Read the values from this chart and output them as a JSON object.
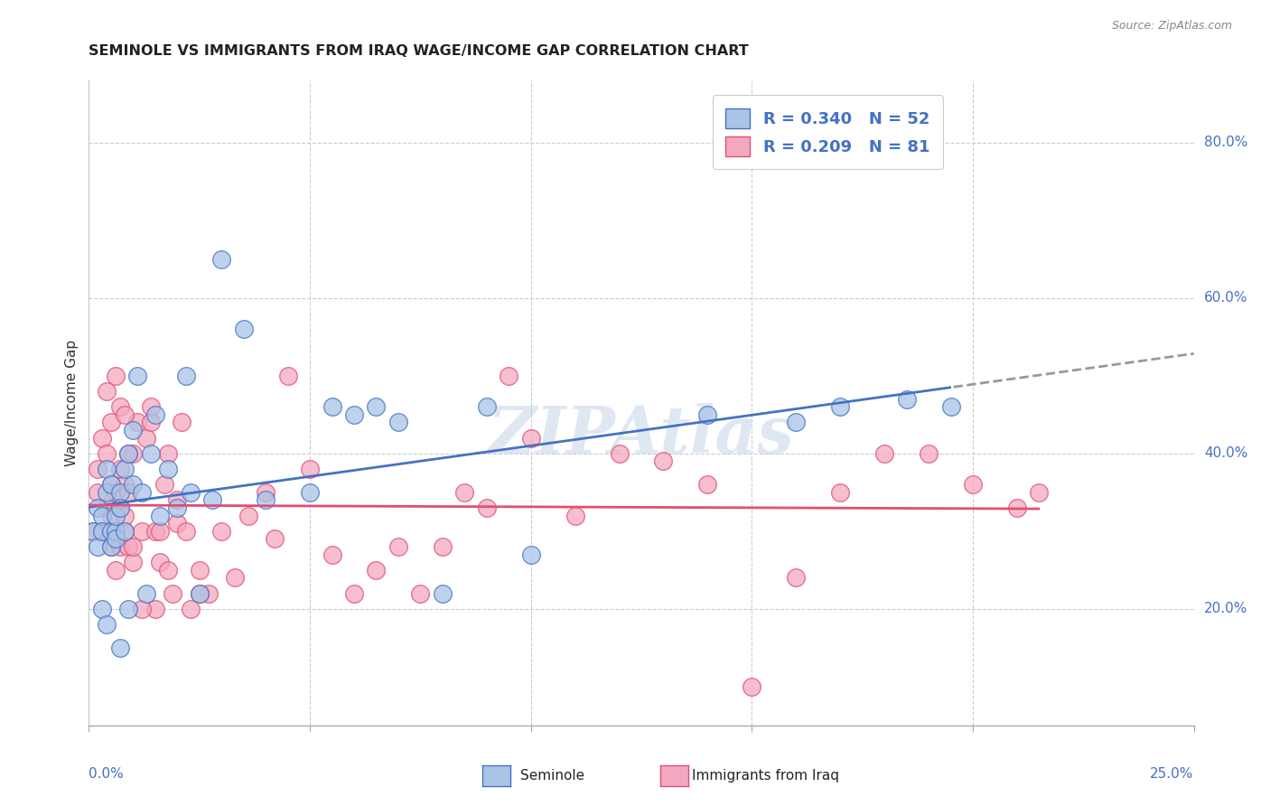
{
  "title": "SEMINOLE VS IMMIGRANTS FROM IRAQ WAGE/INCOME GAP CORRELATION CHART",
  "source": "Source: ZipAtlas.com",
  "ylabel": "Wage/Income Gap",
  "watermark": "ZIPAtlas",
  "seminole_R": 0.34,
  "seminole_N": 52,
  "iraq_R": 0.209,
  "iraq_N": 81,
  "seminole_color": "#aac4e8",
  "iraq_color": "#f4a8c0",
  "trendline_seminole_color": "#4472c4",
  "trendline_iraq_color": "#e05070",
  "legend_label_seminole": "Seminole",
  "legend_label_iraq": "Immigrants from Iraq",
  "xmin": 0.0,
  "xmax": 0.25,
  "ymin": 0.05,
  "ymax": 0.88,
  "ytick_values": [
    0.2,
    0.4,
    0.6,
    0.8
  ],
  "seminole_x": [
    0.001,
    0.002,
    0.002,
    0.003,
    0.003,
    0.004,
    0.004,
    0.005,
    0.005,
    0.005,
    0.006,
    0.006,
    0.006,
    0.007,
    0.007,
    0.008,
    0.008,
    0.009,
    0.01,
    0.01,
    0.011,
    0.012,
    0.013,
    0.014,
    0.015,
    0.016,
    0.018,
    0.02,
    0.022,
    0.023,
    0.025,
    0.028,
    0.03,
    0.035,
    0.04,
    0.05,
    0.055,
    0.06,
    0.065,
    0.07,
    0.08,
    0.09,
    0.1,
    0.14,
    0.16,
    0.17,
    0.185,
    0.195,
    0.003,
    0.004,
    0.007,
    0.009
  ],
  "seminole_y": [
    0.3,
    0.28,
    0.33,
    0.32,
    0.3,
    0.35,
    0.38,
    0.3,
    0.28,
    0.36,
    0.3,
    0.29,
    0.32,
    0.35,
    0.33,
    0.38,
    0.3,
    0.4,
    0.36,
    0.43,
    0.5,
    0.35,
    0.22,
    0.4,
    0.45,
    0.32,
    0.38,
    0.33,
    0.5,
    0.35,
    0.22,
    0.34,
    0.65,
    0.56,
    0.34,
    0.35,
    0.46,
    0.45,
    0.46,
    0.44,
    0.22,
    0.46,
    0.27,
    0.45,
    0.44,
    0.46,
    0.47,
    0.46,
    0.2,
    0.18,
    0.15,
    0.2
  ],
  "iraq_x": [
    0.001,
    0.002,
    0.002,
    0.003,
    0.003,
    0.004,
    0.004,
    0.005,
    0.005,
    0.005,
    0.006,
    0.006,
    0.006,
    0.007,
    0.007,
    0.007,
    0.008,
    0.008,
    0.008,
    0.009,
    0.009,
    0.01,
    0.01,
    0.011,
    0.012,
    0.013,
    0.014,
    0.015,
    0.015,
    0.016,
    0.017,
    0.018,
    0.019,
    0.02,
    0.021,
    0.022,
    0.023,
    0.025,
    0.027,
    0.03,
    0.033,
    0.036,
    0.04,
    0.042,
    0.045,
    0.05,
    0.055,
    0.06,
    0.065,
    0.07,
    0.075,
    0.08,
    0.085,
    0.09,
    0.095,
    0.1,
    0.11,
    0.12,
    0.13,
    0.14,
    0.15,
    0.16,
    0.17,
    0.18,
    0.19,
    0.2,
    0.21,
    0.215,
    0.004,
    0.005,
    0.006,
    0.007,
    0.008,
    0.009,
    0.01,
    0.012,
    0.014,
    0.016,
    0.018,
    0.02,
    0.025
  ],
  "iraq_y": [
    0.3,
    0.35,
    0.38,
    0.42,
    0.3,
    0.33,
    0.4,
    0.36,
    0.28,
    0.32,
    0.3,
    0.35,
    0.25,
    0.28,
    0.33,
    0.38,
    0.3,
    0.32,
    0.36,
    0.28,
    0.35,
    0.4,
    0.26,
    0.44,
    0.3,
    0.42,
    0.44,
    0.3,
    0.2,
    0.26,
    0.36,
    0.4,
    0.22,
    0.31,
    0.44,
    0.3,
    0.2,
    0.25,
    0.22,
    0.3,
    0.24,
    0.32,
    0.35,
    0.29,
    0.5,
    0.38,
    0.27,
    0.22,
    0.25,
    0.28,
    0.22,
    0.28,
    0.35,
    0.33,
    0.5,
    0.42,
    0.32,
    0.4,
    0.39,
    0.36,
    0.1,
    0.24,
    0.35,
    0.4,
    0.4,
    0.36,
    0.33,
    0.35,
    0.48,
    0.44,
    0.5,
    0.46,
    0.45,
    0.4,
    0.28,
    0.2,
    0.46,
    0.3,
    0.25,
    0.34,
    0.22
  ]
}
